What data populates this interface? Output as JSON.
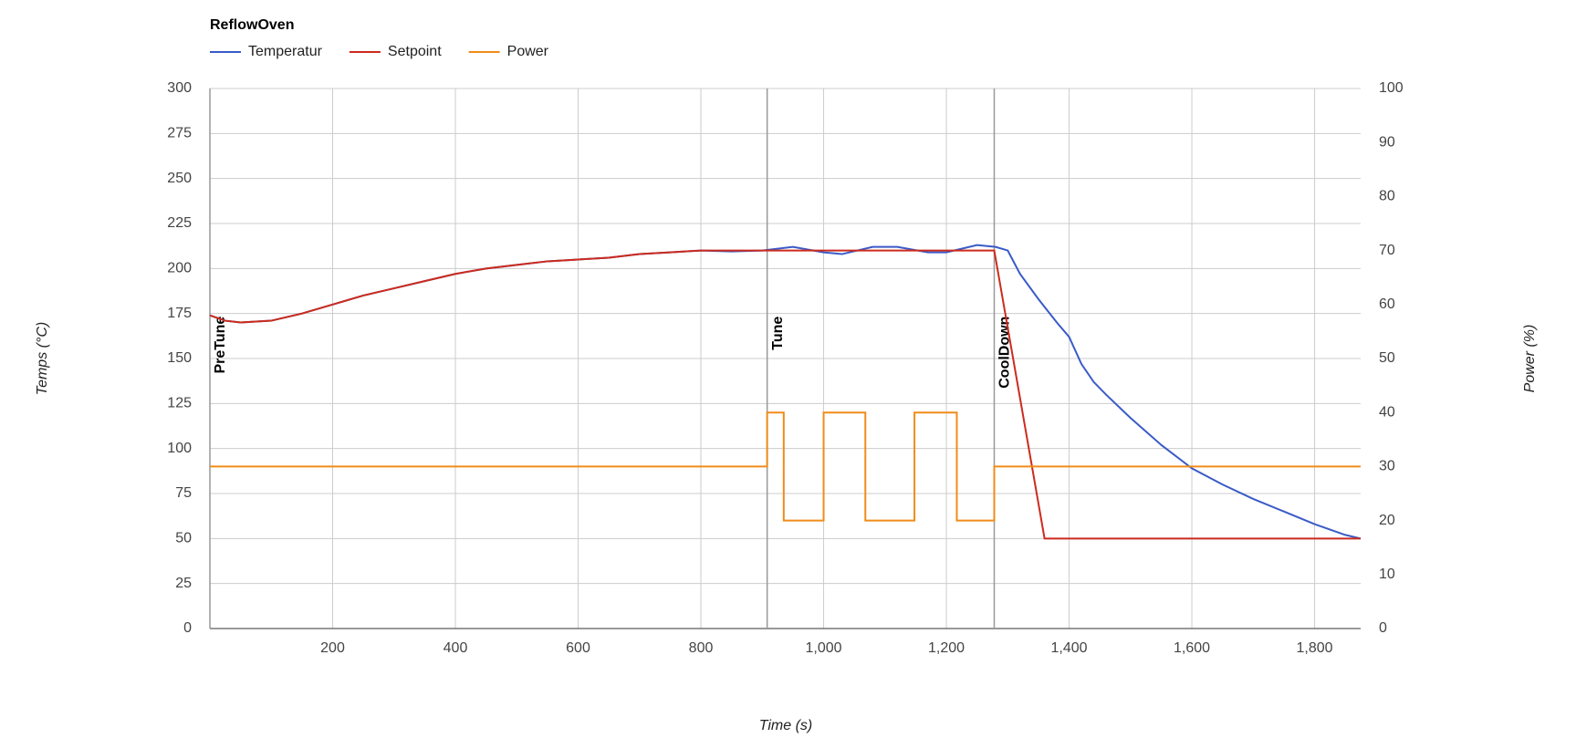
{
  "chart_data": {
    "type": "line",
    "title": "ReflowOven",
    "xlabel": "Time (s)",
    "ylabel": "Temps (°C)",
    "y2label": "Power (%)",
    "xlim": [
      0,
      1875
    ],
    "xticks": [
      200,
      400,
      600,
      800,
      {
        "value": 1000,
        "label": "1,000"
      },
      {
        "value": 1200,
        "label": "1,200"
      },
      {
        "value": 1400,
        "label": "1,400"
      },
      {
        "value": 1600,
        "label": "1,600"
      },
      {
        "value": 1800,
        "label": "1,800"
      }
    ],
    "ylim": [
      0,
      300
    ],
    "yticks": [
      0,
      25,
      50,
      75,
      100,
      125,
      150,
      175,
      200,
      225,
      250,
      275,
      300
    ],
    "y2lim": [
      0,
      100
    ],
    "y2ticks": [
      0,
      10,
      20,
      30,
      40,
      50,
      60,
      70,
      80,
      90,
      100
    ],
    "grid": true,
    "legend": "top-left",
    "series": [
      {
        "name": "Temperatur",
        "color": "#3a5bc7",
        "x": [
          0,
          25,
          50,
          100,
          150,
          200,
          250,
          300,
          350,
          400,
          450,
          500,
          550,
          600,
          650,
          700,
          750,
          800,
          850,
          900,
          950,
          1000,
          1030,
          1080,
          1120,
          1170,
          1200,
          1250,
          1280,
          1300,
          1320,
          1350,
          1380,
          1400,
          1420,
          1440,
          1460,
          1500,
          1550,
          1600,
          1650,
          1700,
          1750,
          1800,
          1850,
          1875
        ],
        "values": [
          174,
          171,
          170,
          171,
          175,
          180,
          185,
          189,
          193,
          197,
          200,
          202,
          204,
          205,
          206,
          208,
          209,
          210,
          209.5,
          210,
          212,
          209,
          208,
          212,
          212,
          209,
          209,
          213,
          212,
          210,
          197,
          183,
          170,
          162,
          147,
          137,
          130,
          117,
          102,
          89,
          80,
          72,
          65,
          58,
          52,
          50
        ]
      },
      {
        "name": "Setpoint",
        "color": "#cc2b1d",
        "x": [
          0,
          25,
          50,
          100,
          150,
          200,
          250,
          300,
          350,
          400,
          450,
          500,
          550,
          600,
          650,
          700,
          750,
          800,
          1278,
          1360,
          1875
        ],
        "values": [
          174,
          171,
          170,
          171,
          175,
          180,
          185,
          189,
          193,
          197,
          200,
          202,
          204,
          205,
          206,
          208,
          209,
          210,
          210,
          50,
          50
        ]
      },
      {
        "name": "Power",
        "color": "#f08c1a",
        "axis": "y2",
        "x": [
          0,
          908,
          908,
          935,
          935,
          1000,
          1000,
          1068,
          1068,
          1148,
          1148,
          1217,
          1217,
          1278,
          1278,
          1875
        ],
        "values": [
          30,
          30,
          40,
          40,
          20,
          20,
          40,
          40,
          20,
          20,
          40,
          40,
          20,
          20,
          30,
          30
        ]
      }
    ],
    "annotations": [
      {
        "x": 0,
        "label": "PreTune"
      },
      {
        "x": 908,
        "label": "Tune"
      },
      {
        "x": 1278,
        "label": "CoolDown"
      }
    ]
  }
}
